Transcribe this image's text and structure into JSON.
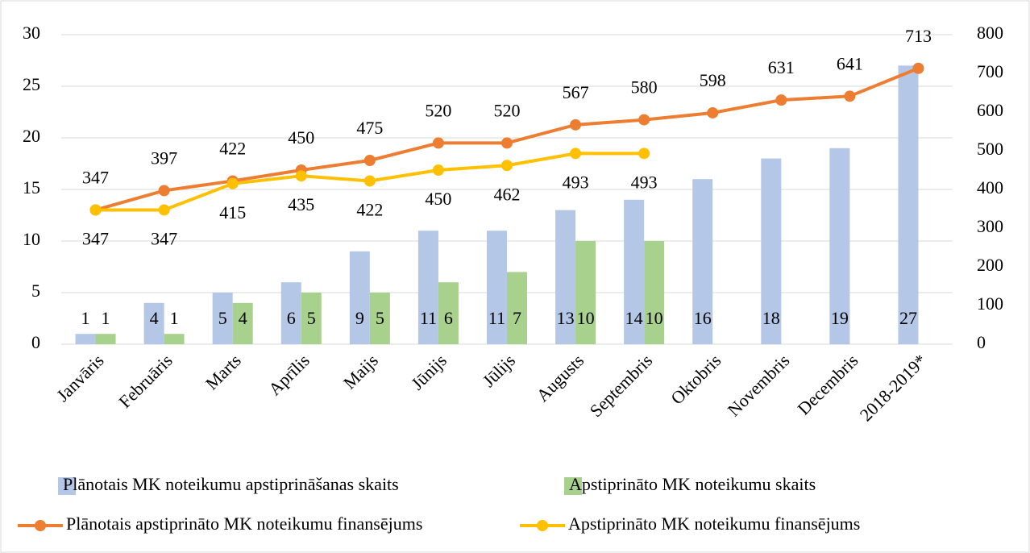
{
  "chart_data": {
    "type": "bar",
    "categories": [
      "Janvāris",
      "Februāris",
      "Marts",
      "Aprīlis",
      "Maijs",
      "Jūnijs",
      "Jūlijs",
      "Augusts",
      "Septembris",
      "Oktobris",
      "Novembris",
      "Decembris",
      "2018-2019*"
    ],
    "series": [
      {
        "name": "Plānotais MK noteikumu apstiprināšanas skaits",
        "type": "bar",
        "color": "#b4c7e7",
        "values": [
          1,
          4,
          5,
          6,
          9,
          11,
          11,
          13,
          14,
          16,
          18,
          19,
          27
        ]
      },
      {
        "name": "Apstiprināto MK noteikumu skaits",
        "type": "bar",
        "color": "#a9d18e",
        "values": [
          1,
          1,
          4,
          5,
          5,
          6,
          7,
          10,
          10,
          null,
          null,
          null,
          null
        ]
      },
      {
        "name": "Plānotais apstiprināto MK noteikumu finansējums",
        "type": "line",
        "axis": "y2",
        "color": "#ed7d31",
        "values": [
          347,
          397,
          422,
          450,
          475,
          520,
          520,
          567,
          580,
          598,
          631,
          641,
          713
        ]
      },
      {
        "name": "Apstiprināto MK noteikumu finansējums",
        "type": "line",
        "axis": "y2",
        "color": "#ffc000",
        "values": [
          347,
          347,
          415,
          435,
          422,
          450,
          462,
          493,
          493,
          null,
          null,
          null,
          null
        ]
      }
    ],
    "ylim": [
      0,
      30
    ],
    "yticks": [
      0,
      5,
      10,
      15,
      20,
      25,
      30
    ],
    "y2lim": [
      0,
      800
    ],
    "y2ticks": [
      0,
      100,
      200,
      300,
      400,
      500,
      600,
      700,
      800
    ],
    "grid": true,
    "legend": "bottom"
  }
}
